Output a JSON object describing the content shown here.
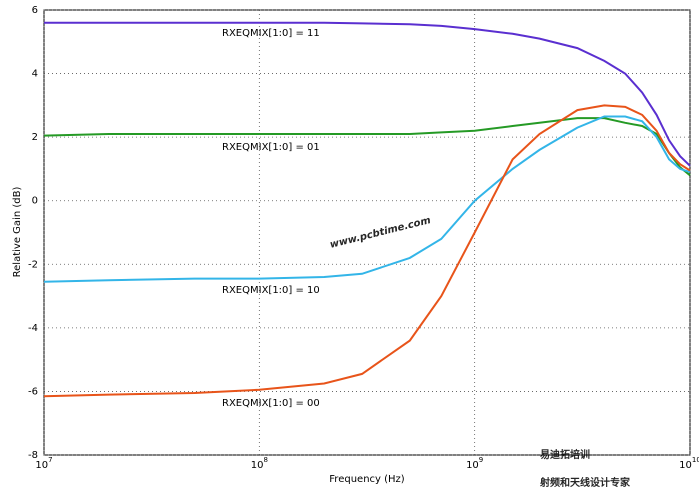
{
  "chart_data": {
    "type": "line",
    "x_label": "Frequency (Hz)",
    "y_label": "Relative Gain (dB)",
    "xscale": "log",
    "grid": true,
    "x": [
      10000000,
      20000000,
      50000000,
      100000000,
      200000000,
      300000000,
      500000000,
      700000000,
      1000000000,
      1500000000,
      2000000000,
      3000000000,
      4000000000,
      5000000000,
      6000000000,
      7000000000,
      8000000000,
      9000000000,
      10000000000
    ],
    "series": [
      {
        "name": "RXEQMIX[1:0] = 11",
        "color": "#5a2fd0",
        "values": [
          5.6,
          5.6,
          5.6,
          5.6,
          5.6,
          5.58,
          5.55,
          5.5,
          5.4,
          5.25,
          5.1,
          4.8,
          4.4,
          4.0,
          3.4,
          2.7,
          1.9,
          1.4,
          1.1
        ]
      },
      {
        "name": "RXEQMIX[1:0] = 01",
        "color": "#259a25",
        "values": [
          2.05,
          2.1,
          2.1,
          2.1,
          2.1,
          2.1,
          2.1,
          2.15,
          2.2,
          2.35,
          2.45,
          2.6,
          2.6,
          2.45,
          2.35,
          2.1,
          1.5,
          1.05,
          0.8
        ]
      },
      {
        "name": "RXEQMIX[1:0] = 10",
        "color": "#33b5e8",
        "values": [
          -2.55,
          -2.5,
          -2.45,
          -2.45,
          -2.4,
          -2.3,
          -1.8,
          -1.2,
          0.0,
          1.0,
          1.6,
          2.3,
          2.65,
          2.65,
          2.5,
          2.0,
          1.3,
          1.0,
          0.9
        ]
      },
      {
        "name": "RXEQMIX[1:0] = 00",
        "color": "#e8541a",
        "values": [
          -6.15,
          -6.1,
          -6.05,
          -5.95,
          -5.75,
          -5.45,
          -4.4,
          -3.0,
          -1.0,
          1.3,
          2.1,
          2.85,
          3.0,
          2.95,
          2.7,
          2.2,
          1.5,
          1.15,
          0.95
        ]
      }
    ],
    "xlim": [
      10000000,
      10000000000
    ],
    "xticks": [
      {
        "value": 10000000,
        "label": "10",
        "exponent": "7"
      },
      {
        "value": 100000000,
        "label": "10",
        "exponent": "8"
      },
      {
        "value": 1000000000,
        "label": "10",
        "exponent": "9"
      },
      {
        "value": 10000000000,
        "label": "10",
        "exponent": "10"
      }
    ],
    "ylim": [
      -8,
      6
    ],
    "yticks": [
      6,
      4,
      2,
      0,
      -2,
      -4,
      -6,
      -8
    ],
    "watermarks": [
      "www.pcbtime.com",
      "易迪拓培训",
      "射频和天线设计专家"
    ]
  }
}
